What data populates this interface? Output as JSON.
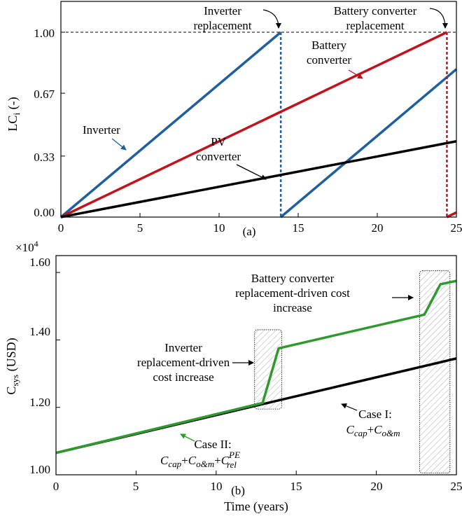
{
  "chart_data": [
    {
      "type": "line",
      "panel_label": "(a)",
      "ylabel_main": "LC",
      "ylabel_sub": "i",
      "ylabel_suffix": " (-)",
      "xlim": [
        0,
        25
      ],
      "ylim": [
        0,
        1.0
      ],
      "xticks": [
        0,
        5,
        10,
        15,
        20,
        25
      ],
      "xtick_labels": [
        "0",
        "5",
        "10",
        "15",
        "20",
        "25"
      ],
      "yticks": [
        0,
        0.33,
        0.67,
        1.0
      ],
      "ytick_labels": [
        "0.00",
        "0.33",
        "0.67",
        "1.00"
      ],
      "reference_line": {
        "y": 1.0,
        "style": "dashed"
      },
      "series": [
        {
          "key": "inverter",
          "color": "#1f5f9e",
          "points": [
            [
              0,
              0
            ],
            [
              13.9,
              1.0
            ]
          ],
          "reset_x": 13.9,
          "points_after": [
            [
              13.9,
              0
            ],
            [
              25,
              0.8
            ]
          ]
        },
        {
          "key": "battery",
          "color": "#c0141c",
          "points": [
            [
              0,
              0
            ],
            [
              24.4,
              1.0
            ]
          ],
          "reset_x": 24.4,
          "points_after": [
            [
              24.4,
              0
            ],
            [
              25,
              0.025
            ]
          ]
        },
        {
          "key": "pv",
          "color": "#000000",
          "points": [
            [
              0,
              0
            ],
            [
              25,
              0.41
            ]
          ]
        }
      ],
      "annotations": {
        "inverter_label": "Inverter",
        "battery_line1": "Battery",
        "battery_line2": "converter",
        "pv_line1": "PV",
        "pv_line2": "converter",
        "inv_repl_line1": "Inverter",
        "inv_repl_line2": "replacement",
        "bat_repl_line1": "Battery converter",
        "bat_repl_line2": "replacement"
      }
    },
    {
      "type": "line",
      "panel_label": "(b)",
      "xlabel": "Time (years)",
      "ylabel_main": "C",
      "ylabel_sub": "sys",
      "ylabel_suffix": " (USD)",
      "scale_note": "×10",
      "scale_exp": "4",
      "xlim": [
        0,
        25
      ],
      "ylim": [
        1.0,
        1.65
      ],
      "xticks": [
        0,
        5,
        10,
        15,
        20,
        25
      ],
      "xtick_labels": [
        "0",
        "5",
        "10",
        "15",
        "20",
        "25"
      ],
      "yticks": [
        1.0,
        1.2,
        1.4,
        1.6
      ],
      "ytick_labels": [
        "1.00",
        "1.20",
        "1.40",
        "1.60"
      ],
      "series": [
        {
          "key": "case1",
          "color": "#000000",
          "points": [
            [
              0,
              1.065
            ],
            [
              25,
              1.345
            ]
          ]
        },
        {
          "key": "case2",
          "color": "#2e9a2e",
          "points": [
            [
              0,
              1.065
            ],
            [
              12.9,
              1.213
            ],
            [
              13.9,
              1.375
            ],
            [
              23.0,
              1.475
            ],
            [
              24.0,
              1.565
            ],
            [
              25,
              1.575
            ]
          ]
        }
      ],
      "shaded_regions": [
        {
          "x0": 12.4,
          "x1": 14.1,
          "y0": 1.195,
          "y1": 1.43
        },
        {
          "x0": 22.7,
          "x1": 24.6,
          "y0": 1.005,
          "y1": 1.605
        }
      ],
      "annotations": {
        "inv_cost_line1": "Inverter",
        "inv_cost_line2": "replacement-driven",
        "inv_cost_line3": "cost increase",
        "bat_cost_line1": "Battery converter",
        "bat_cost_line2": "replacement-driven cost",
        "bat_cost_line3": "increase",
        "case1_title": "Case I:",
        "case2_title": "Case II:",
        "c_sym": "C",
        "cap_sub": "cap",
        "om_sub": "o&m",
        "rel_sub": "rel",
        "pe_sup": "PE",
        "plus": "+"
      }
    }
  ],
  "colors": {
    "inverter": "#1f5f9e",
    "battery": "#c0141c",
    "pv": "#000000",
    "case1": "#000000",
    "case2": "#2e9a2e"
  }
}
